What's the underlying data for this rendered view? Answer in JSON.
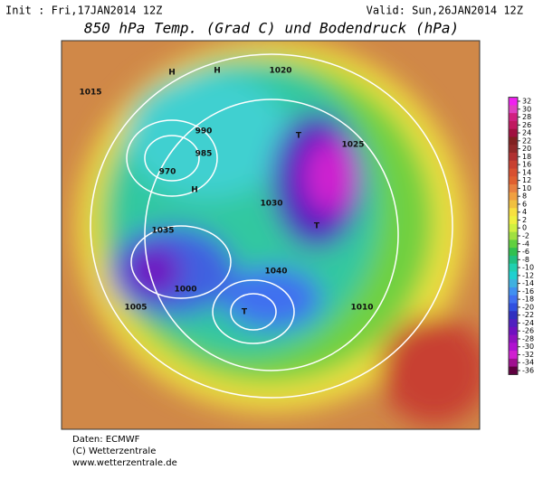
{
  "header": {
    "init": "Init : Fri,17JAN2014 12Z",
    "valid": "Valid: Sun,26JAN2014 12Z",
    "title": "850 hPa Temp. (Grad C) und Bodendruck (hPa)"
  },
  "colorbar": {
    "ticks": [
      32,
      30,
      28,
      26,
      24,
      22,
      20,
      18,
      16,
      14,
      12,
      10,
      8,
      6,
      4,
      2,
      0,
      -2,
      -4,
      -6,
      -8,
      -10,
      -12,
      -14,
      -16,
      -18,
      -20,
      -22,
      -24,
      -26,
      -28,
      -30,
      -32,
      -34,
      -36
    ],
    "colors": [
      "#f020f0",
      "#e040c0",
      "#d02080",
      "#c01860",
      "#a01040",
      "#802020",
      "#902828",
      "#b03030",
      "#c84030",
      "#d85030",
      "#e06030",
      "#e88040",
      "#f0a040",
      "#f0c040",
      "#f8e040",
      "#f0f040",
      "#d0f040",
      "#a0e040",
      "#60d040",
      "#30c050",
      "#20c080",
      "#20d0b0",
      "#20d0d0",
      "#40b0e0",
      "#4090f0",
      "#4070f0",
      "#3050e0",
      "#3030c0",
      "#5020c0",
      "#7010c0",
      "#9010c0",
      "#b010d0",
      "#d020d0",
      "#a01090",
      "#600040"
    ]
  },
  "map": {
    "labels": [
      "1015",
      "1020",
      "1030",
      "1035",
      "1040",
      "990",
      "970",
      "985",
      "1005",
      "1010",
      "1025",
      "1000",
      "H",
      "H",
      "H",
      "T",
      "T",
      "T"
    ]
  },
  "footer": [
    "Daten: ECMWF",
    "(C) Wetterzentrale",
    "www.wetterzentrale.de"
  ]
}
